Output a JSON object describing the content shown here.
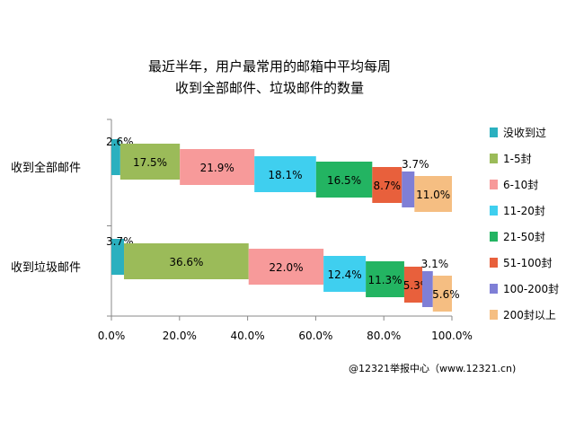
{
  "chart_data": {
    "type": "bar",
    "orientation": "horizontal",
    "stacked": true,
    "title": [
      "最近半年，用户最常用的邮箱中平均每周",
      "收到全部邮件、垃圾邮件的数量"
    ],
    "categories": [
      "收到全部邮件",
      "收到垃圾邮件"
    ],
    "xlim": [
      0,
      100
    ],
    "xticks": [
      "0.0%",
      "20.0%",
      "40.0%",
      "60.0%",
      "80.0%",
      "100.0%"
    ],
    "grid": false,
    "legend_position": "right",
    "series": [
      {
        "name": "没收到过",
        "color": "#2BB0BF",
        "values": [
          2.6,
          3.7
        ],
        "labels": [
          "2.6%",
          "3.7%"
        ]
      },
      {
        "name": "1-5封",
        "color": "#9BBB59",
        "values": [
          17.5,
          36.6
        ],
        "labels": [
          "17.5%",
          "36.6%"
        ]
      },
      {
        "name": "6-10封",
        "color": "#F79A9A",
        "values": [
          21.9,
          22.0
        ],
        "labels": [
          "21.9%",
          "22.0%"
        ]
      },
      {
        "name": "11-20封",
        "color": "#3FCFEF",
        "values": [
          18.1,
          12.4
        ],
        "labels": [
          "18.1%",
          "12.4%"
        ]
      },
      {
        "name": "21-50封",
        "color": "#23B462",
        "values": [
          16.5,
          11.3
        ],
        "labels": [
          "16.5%",
          "11.3%"
        ]
      },
      {
        "name": "51-100封",
        "color": "#E8603C",
        "values": [
          8.7,
          5.3
        ],
        "labels": [
          "8.7%",
          "5.3%"
        ]
      },
      {
        "name": "100-200封",
        "color": "#7F7FD6",
        "values": [
          3.7,
          3.1
        ],
        "labels": [
          "3.7%",
          "3.1%"
        ]
      },
      {
        "name": "200封以上",
        "color": "#F5BE82",
        "values": [
          11.0,
          5.6
        ],
        "labels": [
          "11.0%",
          "5.6%"
        ]
      }
    ]
  },
  "source_text": "@12321举报中心（www.12321.cn)"
}
